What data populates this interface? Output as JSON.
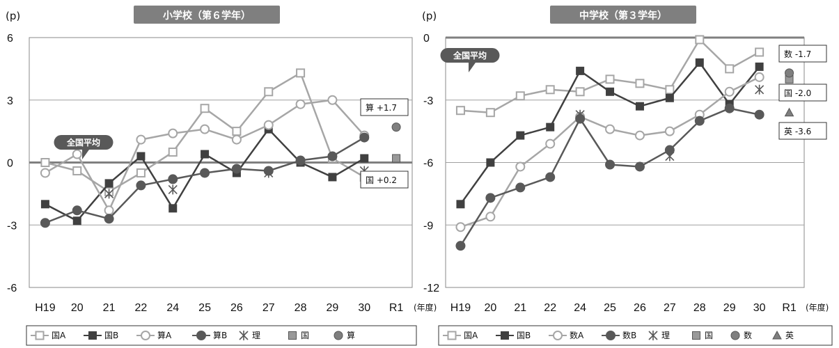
{
  "chart_data": [
    {
      "type": "line",
      "title": "小学校（第６学年）",
      "unit": "(p)",
      "x_unit": "(年度)",
      "categories": [
        "H19",
        "20",
        "21",
        "22",
        "24",
        "25",
        "26",
        "27",
        "28",
        "29",
        "30",
        "R1"
      ],
      "ylim": [
        -6,
        6
      ],
      "yticks": [
        "6",
        "3",
        "0",
        "-3",
        "-6"
      ],
      "grid": true,
      "reference_label": "全国平均",
      "legend_position": "bottom",
      "series": [
        {
          "name": "国A",
          "style": "line-open-square",
          "color": "#a6a6a6",
          "values": [
            0.0,
            -0.4,
            -1.4,
            -0.5,
            0.5,
            2.6,
            1.5,
            3.4,
            4.3,
            0.2,
            -0.7,
            null
          ]
        },
        {
          "name": "国B",
          "style": "line-filled-square",
          "color": "#404040",
          "values": [
            -2.0,
            -2.8,
            -1.0,
            0.3,
            -2.2,
            0.4,
            -0.5,
            1.6,
            0.0,
            -0.7,
            0.2,
            null
          ]
        },
        {
          "name": "算A",
          "style": "line-open-circle",
          "color": "#a6a6a6",
          "values": [
            -0.5,
            0.4,
            -2.3,
            1.1,
            1.4,
            1.6,
            1.1,
            1.8,
            2.8,
            3.0,
            1.3,
            null
          ]
        },
        {
          "name": "算B",
          "style": "line-filled-circle",
          "color": "#595959",
          "values": [
            -2.9,
            -2.3,
            -2.7,
            -1.1,
            -0.8,
            -0.5,
            -0.3,
            -0.4,
            0.1,
            0.3,
            1.2,
            null
          ]
        },
        {
          "name": "理",
          "style": "asterisk",
          "color": "#595959",
          "values": [
            null,
            null,
            -1.5,
            null,
            -1.3,
            null,
            null,
            -0.5,
            null,
            null,
            -0.4,
            null
          ]
        },
        {
          "name": "国",
          "style": "gray-square",
          "color": "#999999",
          "values": [
            null,
            null,
            null,
            null,
            null,
            null,
            null,
            null,
            null,
            null,
            null,
            0.2
          ]
        },
        {
          "name": "算",
          "style": "gray-circle",
          "color": "#7f7f7f",
          "values": [
            null,
            null,
            null,
            null,
            null,
            null,
            null,
            null,
            null,
            null,
            null,
            1.7
          ]
        }
      ],
      "annotations": [
        {
          "text": "算 +1.7",
          "value": 1.7
        },
        {
          "text": "国 +0.2",
          "value": 0.2
        }
      ]
    },
    {
      "type": "line",
      "title": "中学校（第３学年）",
      "unit": "(p)",
      "x_unit": "(年度)",
      "categories": [
        "H19",
        "20",
        "21",
        "22",
        "24",
        "25",
        "26",
        "27",
        "28",
        "29",
        "30",
        "R1"
      ],
      "ylim": [
        -12,
        0
      ],
      "yticks": [
        "0",
        "-3",
        "-6",
        "-9",
        "-12"
      ],
      "grid": true,
      "reference_label": "全国平均",
      "legend_position": "bottom",
      "series": [
        {
          "name": "国A",
          "style": "line-open-square",
          "color": "#a6a6a6",
          "values": [
            -3.5,
            -3.6,
            -2.8,
            -2.5,
            -2.6,
            -2.0,
            -2.2,
            -2.5,
            -0.1,
            -1.5,
            -0.7,
            null
          ]
        },
        {
          "name": "国B",
          "style": "line-filled-square",
          "color": "#404040",
          "values": [
            -8.0,
            -6.0,
            -4.7,
            -4.3,
            -1.6,
            -2.6,
            -3.3,
            -2.9,
            -1.2,
            -3.2,
            -1.4,
            null
          ]
        },
        {
          "name": "数A",
          "style": "line-open-circle",
          "color": "#a6a6a6",
          "values": [
            -9.1,
            -8.6,
            -6.2,
            -5.1,
            -3.8,
            -4.4,
            -4.7,
            -4.5,
            -3.7,
            -2.6,
            -1.9,
            null
          ]
        },
        {
          "name": "数B",
          "style": "line-filled-circle",
          "color": "#595959",
          "values": [
            -10.0,
            -7.7,
            -7.2,
            -6.7,
            -3.9,
            -6.1,
            -6.2,
            -5.4,
            -4.0,
            -3.4,
            -3.7,
            null
          ]
        },
        {
          "name": "理",
          "style": "asterisk",
          "color": "#595959",
          "values": [
            null,
            null,
            null,
            null,
            -3.7,
            null,
            null,
            -5.7,
            null,
            null,
            -2.5,
            null
          ]
        },
        {
          "name": "国",
          "style": "gray-square",
          "color": "#999999",
          "values": [
            null,
            null,
            null,
            null,
            null,
            null,
            null,
            null,
            null,
            null,
            null,
            -2.0
          ]
        },
        {
          "name": "数",
          "style": "gray-circle",
          "color": "#7f7f7f",
          "values": [
            null,
            null,
            null,
            null,
            null,
            null,
            null,
            null,
            null,
            null,
            null,
            -1.7
          ]
        },
        {
          "name": "英",
          "style": "gray-triangle",
          "color": "#7f7f7f",
          "values": [
            null,
            null,
            null,
            null,
            null,
            null,
            null,
            null,
            null,
            null,
            null,
            -3.6
          ]
        }
      ],
      "annotations": [
        {
          "text": "数 -1.7",
          "value": -1.7
        },
        {
          "text": "国 -2.0",
          "value": -2.0
        },
        {
          "text": "英 -3.6",
          "value": -3.6
        }
      ]
    }
  ]
}
